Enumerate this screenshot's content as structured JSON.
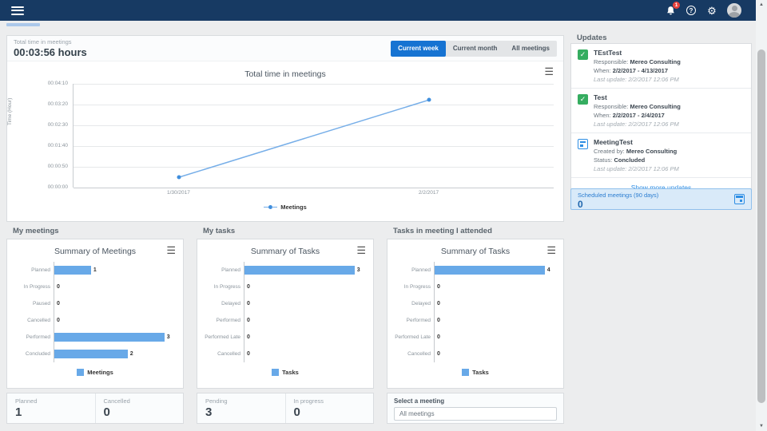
{
  "topbar": {
    "notification_count": "1"
  },
  "summary": {
    "label": "Total time in meetings",
    "value": "00:03:56 hours"
  },
  "tabs": [
    {
      "label": "Current week",
      "active": true
    },
    {
      "label": "Current month",
      "active": false
    },
    {
      "label": "All meetings",
      "active": false
    }
  ],
  "chart_data": [
    {
      "type": "line",
      "title": "Total time in meetings",
      "ylabel": "Time (Hour)",
      "legend": "Meetings",
      "yticks": [
        "00:04:10",
        "00:03:20",
        "00:02:30",
        "00:01:40",
        "00:00:50",
        "00:00:00"
      ],
      "ylim": [
        "00:00:00",
        "00:04:10"
      ],
      "ymax_seconds": 250,
      "grid": true,
      "legend_position": "bottom",
      "points": [
        {
          "x": "1/30/2017",
          "y": "00:00:25",
          "seconds": 25,
          "x_pct": 22
        },
        {
          "x": "2/2/2017",
          "y": "00:03:31",
          "seconds": 211,
          "x_pct": 74
        }
      ]
    },
    {
      "type": "bar",
      "orientation": "horizontal",
      "title": "Summary of Meetings",
      "legend": "Meetings",
      "categories": [
        "Planned",
        "In Progress",
        "Paused",
        "Cancelled",
        "Performed",
        "Concluded"
      ],
      "values": [
        1,
        0,
        0,
        0,
        3,
        2
      ]
    },
    {
      "type": "bar",
      "orientation": "horizontal",
      "title": "Summary of Tasks",
      "legend": "Tasks",
      "categories": [
        "Planned",
        "In Progress",
        "Delayed",
        "Performed",
        "Performed Late",
        "Cancelled"
      ],
      "values": [
        3,
        0,
        0,
        0,
        0,
        0
      ]
    },
    {
      "type": "bar",
      "orientation": "horizontal",
      "title": "Summary of Tasks",
      "legend": "Tasks",
      "categories": [
        "Planned",
        "In Progress",
        "Delayed",
        "Performed",
        "Performed Late",
        "Cancelled"
      ],
      "values": [
        4,
        0,
        0,
        0,
        0,
        0
      ]
    }
  ],
  "sections": [
    {
      "header": "My meetings",
      "stats": [
        {
          "label": "Planned",
          "value": "1"
        },
        {
          "label": "Cancelled",
          "value": "0"
        }
      ]
    },
    {
      "header": "My tasks",
      "stats": [
        {
          "label": "Pending",
          "value": "3"
        },
        {
          "label": "In progress",
          "value": "0"
        }
      ]
    },
    {
      "header": "Tasks in meeting I attended",
      "select_label": "Select a meeting",
      "select_value": "All meetings"
    }
  ],
  "updates": {
    "title": "Updates",
    "items": [
      {
        "icon": "task-icon",
        "name": "TEstTest",
        "fields": [
          {
            "label": "Responsible:",
            "value": "Mereo Consulting"
          },
          {
            "label": "When:",
            "value": "2/2/2017 - 4/13/2017"
          }
        ],
        "last_update": "Last update: 2/2/2017 12:06 PM"
      },
      {
        "icon": "task-icon",
        "name": "Test",
        "fields": [
          {
            "label": "Responsible:",
            "value": "Mereo Consulting"
          },
          {
            "label": "When:",
            "value": "2/2/2017 - 2/4/2017"
          }
        ],
        "last_update": "Last update: 2/2/2017 12:06 PM"
      },
      {
        "icon": "meeting-icon",
        "name": "MeetingTest",
        "fields": [
          {
            "label": "Created by:",
            "value": "Mereo Consulting"
          },
          {
            "label": "Status:",
            "value": "Concluded"
          }
        ],
        "last_update": "Last update: 2/2/2017 12:06 PM"
      }
    ],
    "show_more": "Show more updates"
  },
  "scheduled": {
    "label": "Scheduled meetings (90 days)",
    "value": "0"
  },
  "colors": {
    "navy": "#173a63",
    "accent": "#1673d2",
    "bar": "#68a9e8",
    "line": "#76aee8",
    "dot": "#3f8edd",
    "link": "#2f8fe5",
    "badge": "#e8413c"
  }
}
